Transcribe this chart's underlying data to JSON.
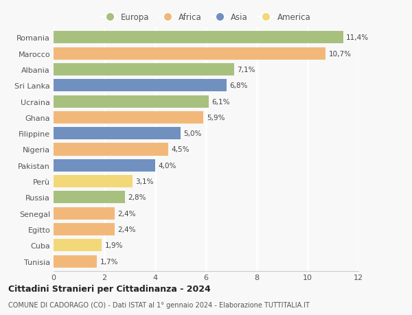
{
  "categories": [
    "Romania",
    "Marocco",
    "Albania",
    "Sri Lanka",
    "Ucraina",
    "Ghana",
    "Filippine",
    "Nigeria",
    "Pakistan",
    "Perù",
    "Russia",
    "Senegal",
    "Egitto",
    "Cuba",
    "Tunisia"
  ],
  "values": [
    11.4,
    10.7,
    7.1,
    6.8,
    6.1,
    5.9,
    5.0,
    4.5,
    4.0,
    3.1,
    2.8,
    2.4,
    2.4,
    1.9,
    1.7
  ],
  "colors": [
    "#a8c07e",
    "#f2b87a",
    "#a8c07e",
    "#7090c0",
    "#a8c07e",
    "#f2b87a",
    "#7090c0",
    "#f2b87a",
    "#7090c0",
    "#f2d878",
    "#a8c07e",
    "#f2b87a",
    "#f2b87a",
    "#f2d878",
    "#f2b87a"
  ],
  "legend": [
    {
      "label": "Europa",
      "color": "#a8c07e"
    },
    {
      "label": "Africa",
      "color": "#f2b87a"
    },
    {
      "label": "Asia",
      "color": "#7090c0"
    },
    {
      "label": "America",
      "color": "#f2d878"
    }
  ],
  "xlim": [
    0,
    12
  ],
  "xticks": [
    0,
    2,
    4,
    6,
    8,
    10,
    12
  ],
  "title": "Cittadini Stranieri per Cittadinanza - 2024",
  "subtitle": "COMUNE DI CADORAGO (CO) - Dati ISTAT al 1° gennaio 2024 - Elaborazione TUTTITALIA.IT",
  "background_color": "#f8f8f8",
  "grid_color": "#ffffff",
  "bar_height": 0.78
}
